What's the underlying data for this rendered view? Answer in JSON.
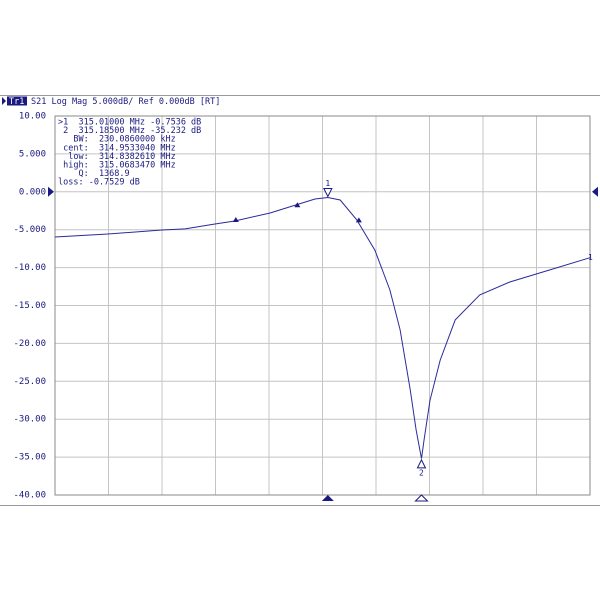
{
  "chart_data": {
    "type": "line",
    "header": {
      "trace": "Tr1",
      "text": "S21 Log Mag 5.000dB/ Ref 0.000dB [RT]"
    },
    "readout": [
      ">1  315.01000 MHz -0.7536 dB",
      " 2  315.18500 MHz -35.232 dB",
      "   BW:  230.0860000 kHz",
      " cent:  314.9533040 MHz",
      "  low:  314.8382610 MHz",
      " high:  315.0683470 MHz",
      "    Q:  1368.9",
      "loss: -0.7529 dB"
    ],
    "xlim": [
      314.5,
      315.5
    ],
    "ylim": [
      -40,
      10
    ],
    "yticks": [
      {
        "value": 10,
        "label": "10.00"
      },
      {
        "value": 5,
        "label": "5.000"
      },
      {
        "value": 0,
        "label": "0.000"
      },
      {
        "value": -5,
        "label": "-5.000"
      },
      {
        "value": -10,
        "label": "-10.00"
      },
      {
        "value": -15,
        "label": "-15.00"
      },
      {
        "value": -20,
        "label": "-20.00"
      },
      {
        "value": -25,
        "label": "-25.00"
      },
      {
        "value": -30,
        "label": "-30.00"
      },
      {
        "value": -35,
        "label": "-35.00"
      },
      {
        "value": -40,
        "label": "-40.00"
      }
    ],
    "grid": true,
    "series": [
      {
        "name": "1",
        "color": "#2a2a9a",
        "x": [
          314.5,
          314.599,
          314.7,
          314.743,
          314.799,
          314.836,
          314.902,
          314.95,
          314.986,
          315.01,
          315.033,
          315.064,
          315.098,
          315.126,
          315.145,
          315.164,
          315.175,
          315.185,
          315.19,
          315.201,
          315.22,
          315.248,
          315.294,
          315.35,
          315.425,
          315.5
        ],
        "values": [
          -5.96,
          -5.57,
          -5.04,
          -4.9,
          -4.25,
          -3.85,
          -2.8,
          -1.74,
          -0.95,
          -0.75,
          -1.08,
          -3.7,
          -7.7,
          -12.95,
          -18.2,
          -26.1,
          -31.4,
          -35.2,
          -32.7,
          -27.5,
          -22.2,
          -16.9,
          -13.6,
          -11.9,
          -10.3,
          -8.7
        ]
      }
    ],
    "markers": [
      {
        "name": "1",
        "x": 315.01,
        "y": -0.7536
      },
      {
        "name": "2",
        "x": 315.185,
        "y": -35.232
      }
    ],
    "bw_markers": {
      "x": [
        314.838,
        314.953,
        315.068
      ],
      "y": [
        -3.85,
        -1.9,
        -3.9
      ]
    }
  }
}
